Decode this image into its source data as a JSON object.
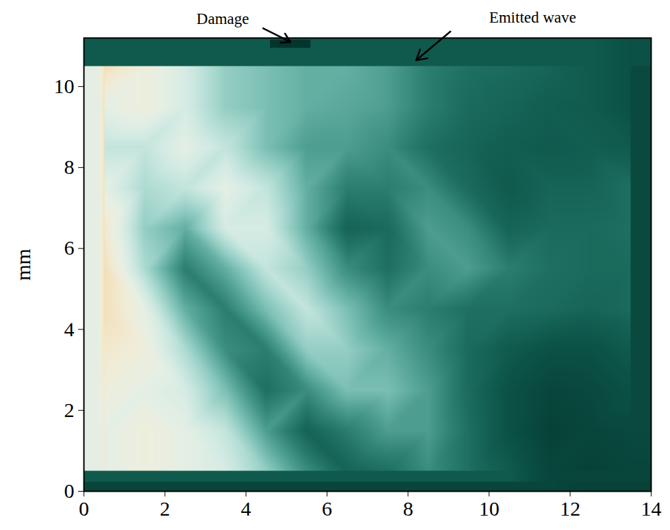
{
  "chart_data": {
    "type": "heatmap",
    "ylabel": "mm",
    "xlim": [
      0,
      14
    ],
    "ylim": [
      0,
      11.2
    ],
    "xticks": [
      0,
      2,
      4,
      6,
      8,
      10,
      12,
      14
    ],
    "yticks": [
      0,
      2,
      4,
      6,
      8,
      10
    ],
    "zlim": [
      0,
      1
    ],
    "cells": {
      "x": [
        0.5,
        1.5,
        2.5,
        3.5,
        4.5,
        5.5,
        6.5,
        7.5,
        8.5,
        9.5,
        10.5,
        11.5,
        12.5,
        13.5
      ],
      "y": [
        10.5,
        9.5,
        8.5,
        7.5,
        6.5,
        5.5,
        4.5,
        3.5,
        2.5,
        1.5,
        0.5
      ],
      "values": [
        [
          0.05,
          0.15,
          0.25,
          0.4,
          0.45,
          0.5,
          0.5,
          0.55,
          0.65,
          0.7,
          0.72,
          0.75,
          0.8,
          0.85
        ],
        [
          0.2,
          0.15,
          0.25,
          0.4,
          0.45,
          0.5,
          0.52,
          0.55,
          0.65,
          0.72,
          0.75,
          0.78,
          0.8,
          0.85
        ],
        [
          0.3,
          0.3,
          0.2,
          0.3,
          0.45,
          0.55,
          0.55,
          0.6,
          0.7,
          0.75,
          0.78,
          0.8,
          0.78,
          0.8
        ],
        [
          0.2,
          0.35,
          0.3,
          0.2,
          0.3,
          0.5,
          0.65,
          0.65,
          0.6,
          0.72,
          0.8,
          0.75,
          0.75,
          0.7
        ],
        [
          0.1,
          0.4,
          0.5,
          0.25,
          0.25,
          0.5,
          0.75,
          0.72,
          0.55,
          0.6,
          0.75,
          0.72,
          0.72,
          0.7
        ],
        [
          0.05,
          0.35,
          0.65,
          0.5,
          0.3,
          0.4,
          0.6,
          0.7,
          0.6,
          0.55,
          0.65,
          0.7,
          0.72,
          0.72
        ],
        [
          0.05,
          0.2,
          0.5,
          0.65,
          0.45,
          0.3,
          0.45,
          0.6,
          0.65,
          0.7,
          0.7,
          0.72,
          0.75,
          0.72
        ],
        [
          0.1,
          0.15,
          0.35,
          0.6,
          0.65,
          0.4,
          0.4,
          0.5,
          0.6,
          0.72,
          0.8,
          0.85,
          0.85,
          0.8
        ],
        [
          0.15,
          0.2,
          0.25,
          0.45,
          0.7,
          0.6,
          0.45,
          0.45,
          0.55,
          0.72,
          0.85,
          0.92,
          0.9,
          0.85
        ],
        [
          0.2,
          0.15,
          0.2,
          0.3,
          0.55,
          0.75,
          0.65,
          0.55,
          0.55,
          0.7,
          0.85,
          0.95,
          0.92,
          0.9
        ],
        [
          0.2,
          0.15,
          0.2,
          0.25,
          0.4,
          0.6,
          0.75,
          0.7,
          0.6,
          0.7,
          0.8,
          0.92,
          0.95,
          0.92
        ]
      ]
    },
    "damage": {
      "x1": 4.6,
      "x2": 5.6,
      "y1": 10.95,
      "y2": 11.15
    },
    "annotations": [
      {
        "text": "Damage",
        "x": 5.1,
        "y": 11.1
      },
      {
        "text": "Emitted wave",
        "x": 8.2,
        "y": 10.65
      }
    ]
  }
}
